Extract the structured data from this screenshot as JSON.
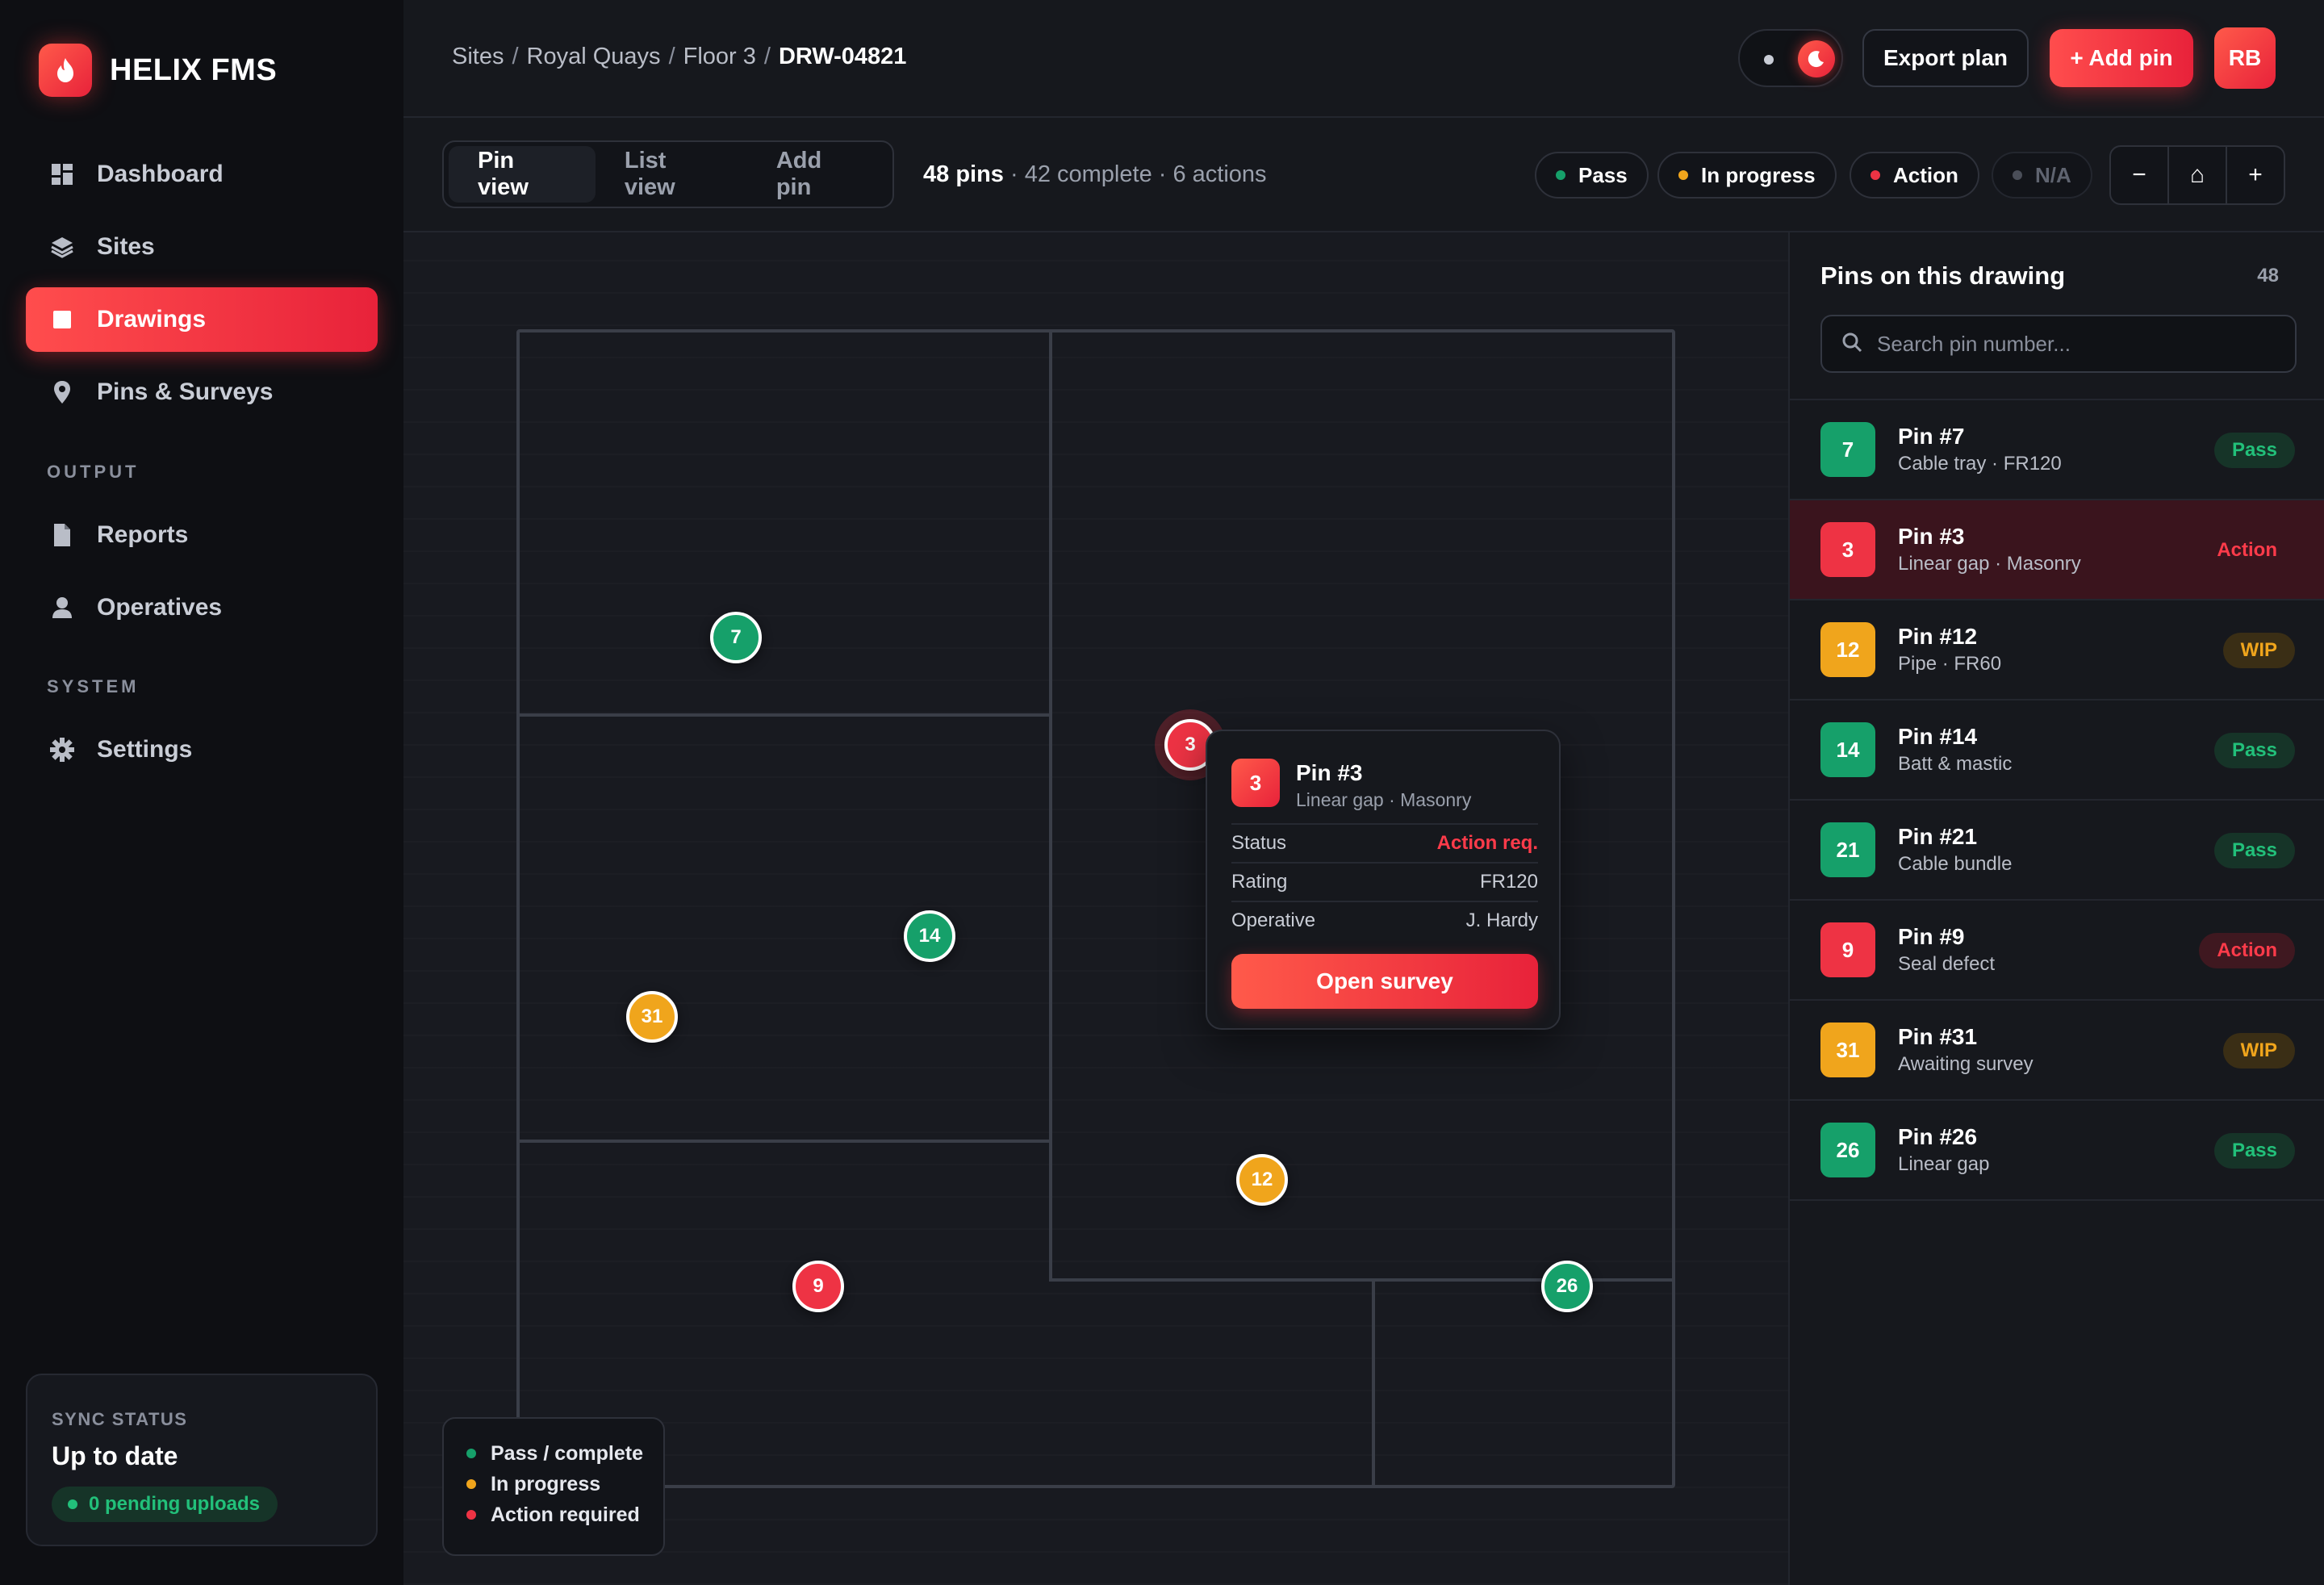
{
  "app": {
    "name": "HELIX FMS",
    "logo_icon": "flame-icon",
    "accent": "#e8223a"
  },
  "sidebar": {
    "items": [
      {
        "label": "Dashboard",
        "icon": "dashboard-icon"
      },
      {
        "label": "Sites",
        "icon": "layers-icon"
      },
      {
        "label": "Drawings",
        "icon": "drawing-icon",
        "active": true
      },
      {
        "label": "Pins & Surveys",
        "icon": "map-pin-icon"
      }
    ],
    "sections": {
      "output": {
        "title": "OUTPUT",
        "items": [
          {
            "label": "Reports",
            "icon": "document-icon"
          },
          {
            "label": "Operatives",
            "icon": "user-icon"
          }
        ]
      },
      "system": {
        "title": "SYSTEM",
        "items": [
          {
            "label": "Settings",
            "icon": "gear-icon"
          }
        ]
      }
    },
    "sync": {
      "label": "SYNC STATUS",
      "value": "Up to date",
      "badge": "0 pending uploads"
    }
  },
  "header": {
    "breadcrumb": [
      "Sites",
      "Royal Quays",
      "Floor 3"
    ],
    "breadcrumb_current": "DRW-04821",
    "export_label": "Export plan",
    "add_pin_label": "+ Add pin",
    "avatar_initials": "RB"
  },
  "toolbar": {
    "views": [
      {
        "label": "Pin view",
        "active": true
      },
      {
        "label": "List view"
      },
      {
        "label": "Add pin"
      }
    ],
    "summary_pins": "48 pins",
    "summary_rest": " · 42 complete · 6 actions",
    "filters": [
      {
        "label": "Pass",
        "color": "#16a06a"
      },
      {
        "label": "In progress",
        "color": "#f0a51c"
      },
      {
        "label": "Action",
        "color": "#ee3344"
      },
      {
        "label": "N/A",
        "color": "#4a4e58"
      }
    ],
    "zoom": {
      "minus": "−",
      "home": "⌂",
      "plus": "+"
    }
  },
  "plan": {
    "pins": [
      {
        "number": "7",
        "status": "pass"
      },
      {
        "number": "3",
        "status": "action",
        "selected": true
      },
      {
        "number": "14",
        "status": "pass"
      },
      {
        "number": "31",
        "status": "wip"
      },
      {
        "number": "12",
        "status": "wip"
      },
      {
        "number": "9",
        "status": "action"
      },
      {
        "number": "26",
        "status": "pass"
      }
    ],
    "popover": {
      "number": "3",
      "title": "Pin #3",
      "subtitle": "Linear gap · Masonry",
      "rows": [
        {
          "label": "Status",
          "value": "Action req."
        },
        {
          "label": "Rating",
          "value": "FR120"
        },
        {
          "label": "Operative",
          "value": "J. Hardy"
        }
      ],
      "button": "Open survey"
    },
    "legend": [
      {
        "label": "Pass / complete",
        "color": "#16a06a"
      },
      {
        "label": "In progress",
        "color": "#f0a51c"
      },
      {
        "label": "Action required",
        "color": "#ee3344"
      }
    ]
  },
  "panel": {
    "title": "Pins on this drawing",
    "count": "48",
    "search_placeholder": "Search pin number...",
    "items": [
      {
        "number": "7",
        "title": "Pin #7",
        "subtitle": "Cable tray · FR120",
        "status": "Pass",
        "kind": "pass"
      },
      {
        "number": "3",
        "title": "Pin #3",
        "subtitle": "Linear gap · Masonry",
        "status": "Action",
        "kind": "action",
        "selected": true
      },
      {
        "number": "12",
        "title": "Pin #12",
        "subtitle": "Pipe · FR60",
        "status": "WIP",
        "kind": "wip"
      },
      {
        "number": "14",
        "title": "Pin #14",
        "subtitle": "Batt & mastic",
        "status": "Pass",
        "kind": "pass"
      },
      {
        "number": "21",
        "title": "Pin #21",
        "subtitle": "Cable bundle",
        "status": "Pass",
        "kind": "pass"
      },
      {
        "number": "9",
        "title": "Pin #9",
        "subtitle": "Seal defect",
        "status": "Action",
        "kind": "action"
      },
      {
        "number": "31",
        "title": "Pin #31",
        "subtitle": "Awaiting survey",
        "status": "WIP",
        "kind": "wip"
      },
      {
        "number": "26",
        "title": "Pin #26",
        "subtitle": "Linear gap",
        "status": "Pass",
        "kind": "pass"
      }
    ]
  }
}
